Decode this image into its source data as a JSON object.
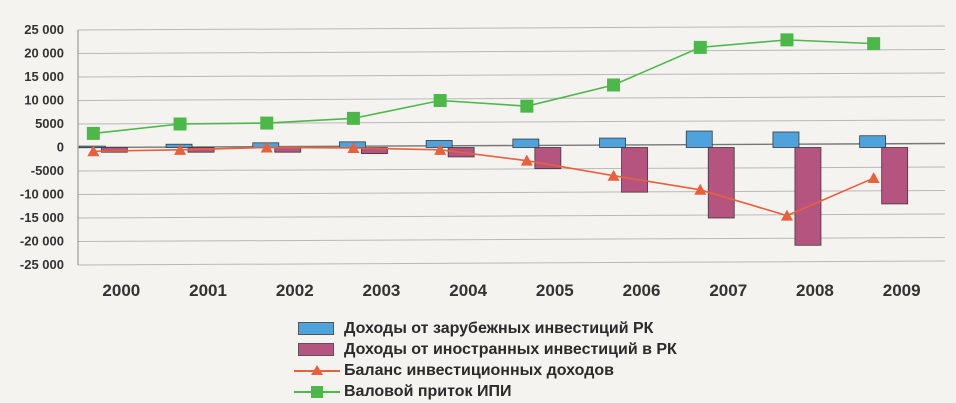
{
  "chart_data": {
    "type": "bar",
    "categories": [
      "2000",
      "2001",
      "2002",
      "2003",
      "2004",
      "2005",
      "2006",
      "2007",
      "2008",
      "2009"
    ],
    "ylim": [
      -25000,
      25000
    ],
    "yticks": [
      "25 000",
      "20 000",
      "15 000",
      "10 000",
      "5000",
      "0",
      "-5000",
      "-10 000",
      "-15 000",
      "-20 000",
      "-25 000"
    ],
    "ytick_values": [
      25000,
      20000,
      15000,
      10000,
      5000,
      0,
      -5000,
      -10000,
      -15000,
      -20000,
      -25000
    ],
    "grid": true,
    "legend_position": "bottom",
    "series": [
      {
        "name": "Доходы от зарубежных инвестиций РК",
        "type": "bar",
        "color": "#4fa3dc",
        "values": [
          300,
          700,
          1000,
          1200,
          1500,
          1800,
          2000,
          3500,
          3300,
          2500
        ]
      },
      {
        "name": "Доходы от иностранных инвестиций в РК",
        "type": "bar",
        "color": "#b5547f",
        "values": [
          -1000,
          -1000,
          -1000,
          -1300,
          -2000,
          -4500,
          -9500,
          -15000,
          -20800,
          -12000
        ]
      },
      {
        "name": "Баланс инвестиционных доходов",
        "type": "line",
        "color": "#e8603c",
        "marker": "triangle",
        "values": [
          -800,
          -500,
          0,
          -100,
          -500,
          -2800,
          -6000,
          -9000,
          -14500,
          -6500
        ]
      },
      {
        "name": "Валовой приток ИПИ",
        "type": "line",
        "color": "#4db84a",
        "marker": "square",
        "values": [
          3000,
          5000,
          5200,
          6200,
          10000,
          8800,
          13300,
          21300,
          22900,
          22100
        ]
      }
    ]
  }
}
